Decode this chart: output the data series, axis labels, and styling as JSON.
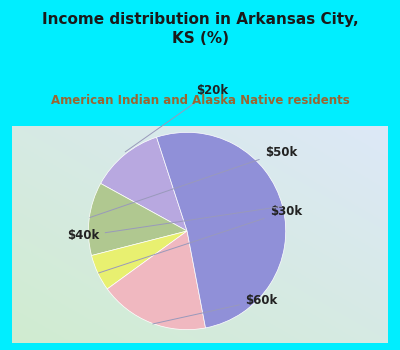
{
  "title": "Income distribution in Arkansas City,\nKS (%)",
  "subtitle": "American Indian and Alaska Native residents",
  "title_color": "#1a1a1a",
  "subtitle_color": "#996633",
  "bg_color": "#00eeff",
  "chart_bg_colors": [
    "#e8f5e8",
    "#dde8f8"
  ],
  "slices": [
    {
      "label": "$20k",
      "value": 12,
      "color": "#b8a8e0"
    },
    {
      "label": "$50k",
      "value": 12,
      "color": "#b0c890"
    },
    {
      "label": "$30k",
      "value": 6,
      "color": "#e8f070"
    },
    {
      "label": "$60k",
      "value": 18,
      "color": "#f0b8c0"
    },
    {
      "label": "$40k",
      "value": 52,
      "color": "#9090d8"
    }
  ],
  "label_fontsize": 8.5,
  "label_color": "#222222",
  "startangle": 108
}
